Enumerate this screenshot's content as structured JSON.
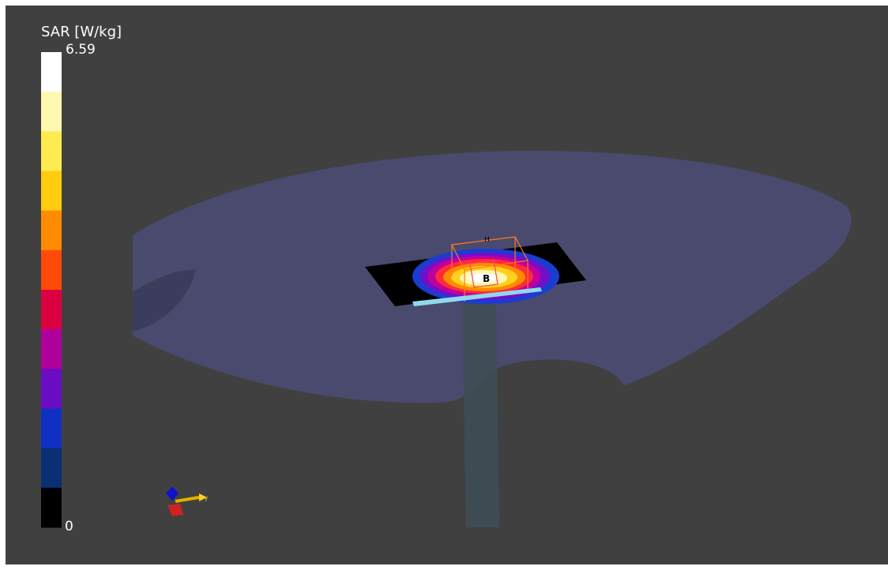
{
  "colorbar": {
    "title": "SAR [W/kg]",
    "max": 6.59,
    "min": 0,
    "colors": [
      "#ffffff",
      "#fff8b0",
      "#ffeb50",
      "#ffcc10",
      "#ff8c00",
      "#ff4a0a",
      "#dd0040",
      "#b0009c",
      "#6a0cc4",
      "#1030c4",
      "#0a2f72",
      "#000000"
    ]
  },
  "scene": {
    "probe_label": "B",
    "box_label": "H",
    "axis_label": "y"
  }
}
